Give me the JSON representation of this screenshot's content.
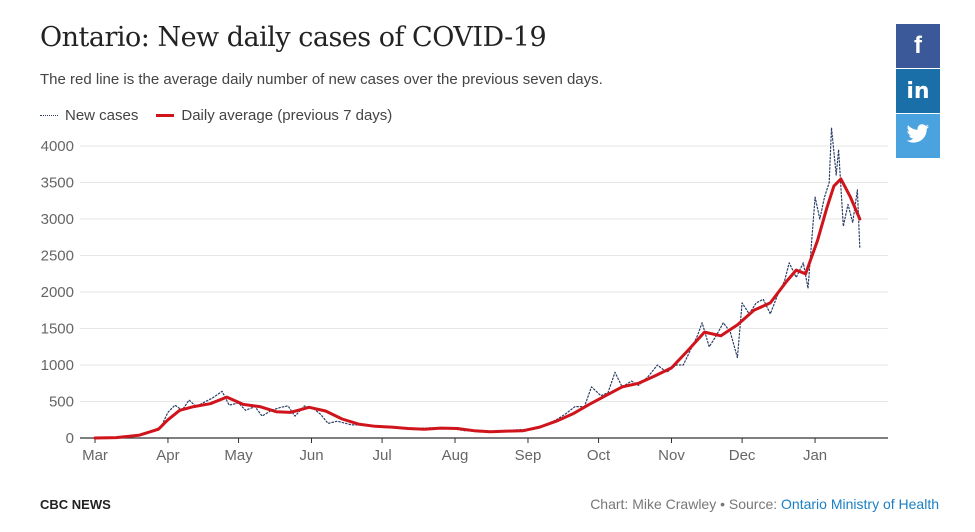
{
  "title": "Ontario: New daily cases of COVID-19",
  "subtitle": "The red line is the average daily number of new cases over the previous seven days.",
  "legend": {
    "new_cases": "New cases",
    "daily_average": "Daily average (previous 7 days)"
  },
  "share": {
    "facebook": "f",
    "linkedin": "in",
    "twitter": "twitter"
  },
  "footer": {
    "brand": "CBC NEWS",
    "credit_prefix": "Chart: Mike Crawley • Source: ",
    "source_link": "Ontario Ministry of Health"
  },
  "colors": {
    "new_cases": "#2c3e66",
    "daily_average": "#d0141c",
    "grid": "#e6e6e6"
  },
  "chart_data": {
    "type": "line",
    "ylim": [
      0,
      4000
    ],
    "y_ticks": [
      "0",
      "500",
      "1000",
      "1500",
      "2000",
      "2500",
      "3000",
      "3500",
      "4000"
    ],
    "x_ticks": [
      "Mar",
      "Apr",
      "May",
      "Jun",
      "Jul",
      "Aug",
      "Sep",
      "Oct",
      "Nov",
      "Dec",
      "Jan"
    ],
    "grid": true,
    "legend_position": "top-left",
    "series": [
      {
        "name": "New cases",
        "style": "dotted",
        "points": [
          [
            "2020-03-01",
            0
          ],
          [
            "2020-03-08",
            5
          ],
          [
            "2020-03-15",
            25
          ],
          [
            "2020-03-22",
            60
          ],
          [
            "2020-03-29",
            150
          ],
          [
            "2020-04-01",
            350
          ],
          [
            "2020-04-04",
            450
          ],
          [
            "2020-04-07",
            380
          ],
          [
            "2020-04-10",
            520
          ],
          [
            "2020-04-13",
            430
          ],
          [
            "2020-04-17",
            500
          ],
          [
            "2020-04-20",
            550
          ],
          [
            "2020-04-24",
            640
          ],
          [
            "2020-04-27",
            450
          ],
          [
            "2020-05-01",
            480
          ],
          [
            "2020-05-04",
            380
          ],
          [
            "2020-05-08",
            430
          ],
          [
            "2020-05-11",
            300
          ],
          [
            "2020-05-15",
            380
          ],
          [
            "2020-05-19",
            420
          ],
          [
            "2020-05-22",
            440
          ],
          [
            "2020-05-25",
            300
          ],
          [
            "2020-05-29",
            440
          ],
          [
            "2020-06-02",
            400
          ],
          [
            "2020-06-05",
            320
          ],
          [
            "2020-06-08",
            200
          ],
          [
            "2020-06-12",
            230
          ],
          [
            "2020-06-18",
            180
          ],
          [
            "2020-06-25",
            180
          ],
          [
            "2020-07-01",
            160
          ],
          [
            "2020-07-08",
            150
          ],
          [
            "2020-07-15",
            130
          ],
          [
            "2020-07-22",
            140
          ],
          [
            "2020-07-29",
            140
          ],
          [
            "2020-08-05",
            100
          ],
          [
            "2020-08-12",
            90
          ],
          [
            "2020-08-19",
            80
          ],
          [
            "2020-08-26",
            110
          ],
          [
            "2020-09-02",
            120
          ],
          [
            "2020-09-09",
            190
          ],
          [
            "2020-09-13",
            250
          ],
          [
            "2020-09-17",
            330
          ],
          [
            "2020-09-21",
            430
          ],
          [
            "2020-09-25",
            430
          ],
          [
            "2020-09-28",
            700
          ],
          [
            "2020-10-02",
            580
          ],
          [
            "2020-10-05",
            620
          ],
          [
            "2020-10-08",
            900
          ],
          [
            "2020-10-11",
            700
          ],
          [
            "2020-10-15",
            780
          ],
          [
            "2020-10-18",
            720
          ],
          [
            "2020-10-22",
            840
          ],
          [
            "2020-10-26",
            1000
          ],
          [
            "2020-10-30",
            900
          ],
          [
            "2020-11-03",
            1000
          ],
          [
            "2020-11-06",
            1000
          ],
          [
            "2020-11-09",
            1200
          ],
          [
            "2020-11-12",
            1400
          ],
          [
            "2020-11-14",
            1580
          ],
          [
            "2020-11-17",
            1250
          ],
          [
            "2020-11-20",
            1400
          ],
          [
            "2020-11-23",
            1580
          ],
          [
            "2020-11-26",
            1450
          ],
          [
            "2020-11-29",
            1100
          ],
          [
            "2020-12-01",
            1850
          ],
          [
            "2020-12-04",
            1700
          ],
          [
            "2020-12-07",
            1850
          ],
          [
            "2020-12-10",
            1900
          ],
          [
            "2020-12-13",
            1700
          ],
          [
            "2020-12-16",
            1950
          ],
          [
            "2020-12-19",
            2150
          ],
          [
            "2020-12-21",
            2400
          ],
          [
            "2020-12-24",
            2200
          ],
          [
            "2020-12-27",
            2400
          ],
          [
            "2020-12-29",
            2050
          ],
          [
            "2021-01-01",
            3300
          ],
          [
            "2021-01-03",
            3000
          ],
          [
            "2021-01-05",
            3300
          ],
          [
            "2021-01-07",
            3500
          ],
          [
            "2021-01-08",
            4250
          ],
          [
            "2021-01-10",
            3600
          ],
          [
            "2021-01-11",
            3950
          ],
          [
            "2021-01-13",
            2900
          ],
          [
            "2021-01-15",
            3200
          ],
          [
            "2021-01-17",
            2950
          ],
          [
            "2021-01-19",
            3400
          ],
          [
            "2021-01-20",
            2600
          ]
        ]
      },
      {
        "name": "Daily average (previous 7 days)",
        "style": "solid",
        "points": [
          [
            "2020-03-01",
            0
          ],
          [
            "2020-03-10",
            5
          ],
          [
            "2020-03-20",
            40
          ],
          [
            "2020-03-28",
            120
          ],
          [
            "2020-04-01",
            250
          ],
          [
            "2020-04-06",
            380
          ],
          [
            "2020-04-12",
            430
          ],
          [
            "2020-04-19",
            470
          ],
          [
            "2020-04-26",
            560
          ],
          [
            "2020-05-03",
            460
          ],
          [
            "2020-05-10",
            430
          ],
          [
            "2020-05-17",
            360
          ],
          [
            "2020-05-23",
            350
          ],
          [
            "2020-05-31",
            420
          ],
          [
            "2020-06-07",
            370
          ],
          [
            "2020-06-14",
            260
          ],
          [
            "2020-06-21",
            190
          ],
          [
            "2020-06-28",
            160
          ],
          [
            "2020-07-05",
            150
          ],
          [
            "2020-07-12",
            130
          ],
          [
            "2020-07-19",
            120
          ],
          [
            "2020-07-26",
            135
          ],
          [
            "2020-08-02",
            130
          ],
          [
            "2020-08-09",
            100
          ],
          [
            "2020-08-16",
            85
          ],
          [
            "2020-08-23",
            95
          ],
          [
            "2020-08-30",
            100
          ],
          [
            "2020-09-06",
            150
          ],
          [
            "2020-09-13",
            230
          ],
          [
            "2020-09-20",
            330
          ],
          [
            "2020-09-27",
            460
          ],
          [
            "2020-10-04",
            580
          ],
          [
            "2020-10-11",
            700
          ],
          [
            "2020-10-18",
            750
          ],
          [
            "2020-10-25",
            850
          ],
          [
            "2020-11-01",
            960
          ],
          [
            "2020-11-08",
            1200
          ],
          [
            "2020-11-15",
            1450
          ],
          [
            "2020-11-22",
            1400
          ],
          [
            "2020-11-29",
            1550
          ],
          [
            "2020-12-06",
            1750
          ],
          [
            "2020-12-13",
            1850
          ],
          [
            "2020-12-20",
            2150
          ],
          [
            "2020-12-24",
            2300
          ],
          [
            "2020-12-28",
            2250
          ],
          [
            "2021-01-02",
            2700
          ],
          [
            "2021-01-06",
            3150
          ],
          [
            "2021-01-09",
            3450
          ],
          [
            "2021-01-12",
            3550
          ],
          [
            "2021-01-16",
            3300
          ],
          [
            "2021-01-20",
            3000
          ]
        ]
      }
    ]
  }
}
